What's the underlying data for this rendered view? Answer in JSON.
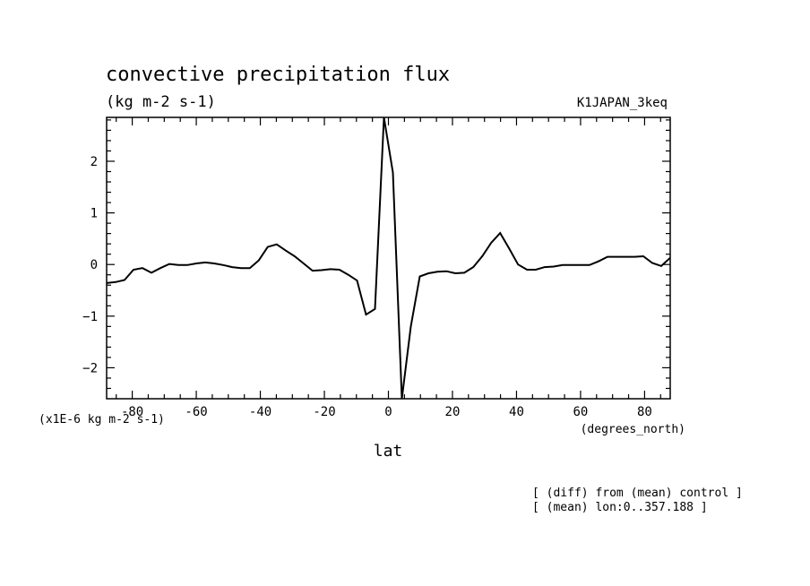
{
  "chart_data": {
    "type": "line",
    "title": "convective precipitation flux",
    "units_label": "(kg m-2 s-1)",
    "run_label": "K1JAPAN_3keq",
    "xlabel": "lat",
    "x_unit": "(degrees_north)",
    "y_scale_label": "(x1E-6 kg m-2 s-1)",
    "notes": [
      "[ (diff) from (mean) control ]",
      "[ (mean) lon:0..357.188 ]"
    ],
    "xlim": [
      -88,
      88
    ],
    "ylim": [
      -2.6,
      2.85
    ],
    "x_ticks": [
      -80,
      -60,
      -40,
      -20,
      0,
      20,
      40,
      60,
      80
    ],
    "x_tick_labels": [
      "-80",
      "-60",
      "-40",
      "-20",
      "0",
      "20",
      "40",
      "60",
      "80"
    ],
    "y_ticks": [
      -2,
      -1,
      0,
      1,
      2
    ],
    "y_tick_labels": [
      "-2",
      "-1",
      "0",
      "1",
      "2"
    ],
    "grid": false,
    "series": [
      {
        "x": [
          -88,
          -85.2,
          -82.4,
          -79.6,
          -76.8,
          -74.0,
          -71.2,
          -68.4,
          -65.6,
          -62.8,
          -60.0,
          -57.2,
          -54.4,
          -51.6,
          -48.8,
          -46.0,
          -43.3,
          -40.5,
          -37.7,
          -34.9,
          -32.1,
          -29.3,
          -26.5,
          -23.7,
          -20.9,
          -18.1,
          -15.3,
          -12.5,
          -9.8,
          -7.0,
          -4.2,
          -1.4,
          1.4,
          4.2,
          7.0,
          9.8,
          12.5,
          15.3,
          18.1,
          20.9,
          23.7,
          26.5,
          29.3,
          32.1,
          34.9,
          37.7,
          40.5,
          43.3,
          46.0,
          48.8,
          51.6,
          54.4,
          57.2,
          60.0,
          62.8,
          65.6,
          68.4,
          71.2,
          74.0,
          76.8,
          79.6,
          82.4,
          85.2,
          88.0
        ],
        "y": [
          -0.36,
          -0.34,
          -0.3,
          -0.1,
          -0.07,
          -0.16,
          -0.07,
          0.01,
          -0.01,
          -0.01,
          0.02,
          0.04,
          0.02,
          -0.01,
          -0.05,
          -0.07,
          -0.07,
          0.08,
          0.34,
          0.39,
          0.27,
          0.16,
          0.02,
          -0.12,
          -0.11,
          -0.09,
          -0.1,
          -0.2,
          -0.31,
          -0.97,
          -0.86,
          2.85,
          1.78,
          -2.6,
          -1.2,
          -0.23,
          -0.17,
          -0.14,
          -0.13,
          -0.17,
          -0.16,
          -0.05,
          0.16,
          0.42,
          0.61,
          0.31,
          0.0,
          -0.1,
          -0.1,
          -0.05,
          -0.04,
          -0.01,
          -0.01,
          -0.01,
          -0.01,
          0.06,
          0.15,
          0.15,
          0.15,
          0.15,
          0.16,
          0.03,
          -0.03,
          0.13
        ]
      }
    ]
  }
}
